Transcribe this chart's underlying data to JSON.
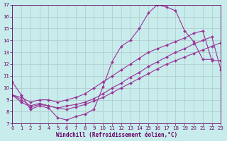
{
  "bg_color": "#c8ecec",
  "line_color": "#993399",
  "grid_color": "#b0c8c8",
  "xlabel": "Windchill (Refroidissement éolien,°C)",
  "xlim": [
    0,
    23
  ],
  "ylim": [
    7,
    17
  ],
  "xticks": [
    0,
    1,
    2,
    3,
    4,
    5,
    6,
    7,
    8,
    9,
    10,
    11,
    12,
    13,
    14,
    15,
    16,
    17,
    18,
    19,
    20,
    21,
    22,
    23
  ],
  "yticks": [
    7,
    8,
    9,
    10,
    11,
    12,
    13,
    14,
    15,
    16,
    17
  ],
  "line1_x": [
    0,
    1,
    2,
    3,
    4,
    5,
    6,
    7,
    8,
    9,
    10,
    11,
    12,
    13,
    14,
    15,
    16,
    17,
    18,
    19,
    20,
    21,
    22
  ],
  "line1_y": [
    10.5,
    9.4,
    8.2,
    8.5,
    8.3,
    7.5,
    7.3,
    7.6,
    7.8,
    8.2,
    10.1,
    12.2,
    13.5,
    14.0,
    15.0,
    16.3,
    17.0,
    16.8,
    16.5,
    14.8,
    13.9,
    12.4,
    12.4
  ],
  "line2_x": [
    0,
    1,
    2,
    3,
    4,
    5,
    6,
    7,
    8,
    9,
    10,
    11,
    12,
    13,
    14,
    15,
    16,
    17,
    18,
    19,
    20,
    21,
    22,
    23
  ],
  "line2_y": [
    9.4,
    9.2,
    8.8,
    9.0,
    9.0,
    8.8,
    9.0,
    9.2,
    9.5,
    10.0,
    10.5,
    11.0,
    11.5,
    12.0,
    12.5,
    13.0,
    13.3,
    13.6,
    13.9,
    14.2,
    14.6,
    14.8,
    12.3,
    12.3
  ],
  "line3_x": [
    0,
    1,
    2,
    3,
    4,
    5,
    6,
    7,
    8,
    9,
    10,
    11,
    12,
    13,
    14,
    15,
    16,
    17,
    18,
    19,
    20,
    21,
    22,
    23
  ],
  "line3_y": [
    9.4,
    9.0,
    8.5,
    8.7,
    8.5,
    8.3,
    8.5,
    8.6,
    8.8,
    9.1,
    9.5,
    10.0,
    10.4,
    10.9,
    11.3,
    11.8,
    12.2,
    12.6,
    13.0,
    13.3,
    13.7,
    14.0,
    14.3,
    11.5
  ],
  "line4_x": [
    0,
    1,
    2,
    3,
    4,
    5,
    6,
    7,
    8,
    9,
    10,
    11,
    12,
    13,
    14,
    15,
    16,
    17,
    18,
    19,
    20,
    21,
    22,
    23
  ],
  "line4_y": [
    9.4,
    8.8,
    8.4,
    8.6,
    8.5,
    8.3,
    8.2,
    8.4,
    8.6,
    8.9,
    9.2,
    9.6,
    10.0,
    10.4,
    10.8,
    11.2,
    11.6,
    12.0,
    12.3,
    12.6,
    12.9,
    13.2,
    13.5,
    13.8
  ]
}
